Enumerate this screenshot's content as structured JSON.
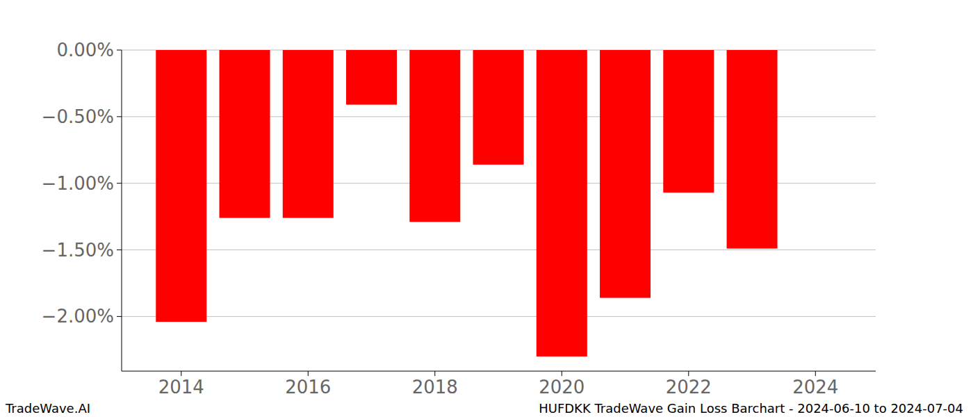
{
  "chart_data": {
    "type": "bar",
    "title": "HUFDKK TradeWave Gain Loss Barchart - 2024-06-10 to 2024-07-04",
    "source": "TradeWave.AI",
    "x": [
      2014,
      2015,
      2016,
      2017,
      2018,
      2019,
      2020,
      2021,
      2022,
      2023
    ],
    "values": [
      -2.04,
      -1.26,
      -1.26,
      -0.41,
      -1.29,
      -0.86,
      -2.3,
      -1.86,
      -1.07,
      -1.49
    ],
    "color": "#ff0000",
    "xlim": [
      2013.06,
      2024.95
    ],
    "xticks": [
      2014,
      2016,
      2018,
      2020,
      2022,
      2024
    ],
    "ylim": [
      -2.41,
      0
    ],
    "yticks": [
      {
        "value": 0,
        "label": "0.00%"
      },
      {
        "value": -0.5,
        "label": "−0.50%"
      },
      {
        "value": -1,
        "label": "−1.00%"
      },
      {
        "value": -1.5,
        "label": "−1.50%"
      },
      {
        "value": -2,
        "label": "−2.00%"
      }
    ],
    "grid": true
  }
}
